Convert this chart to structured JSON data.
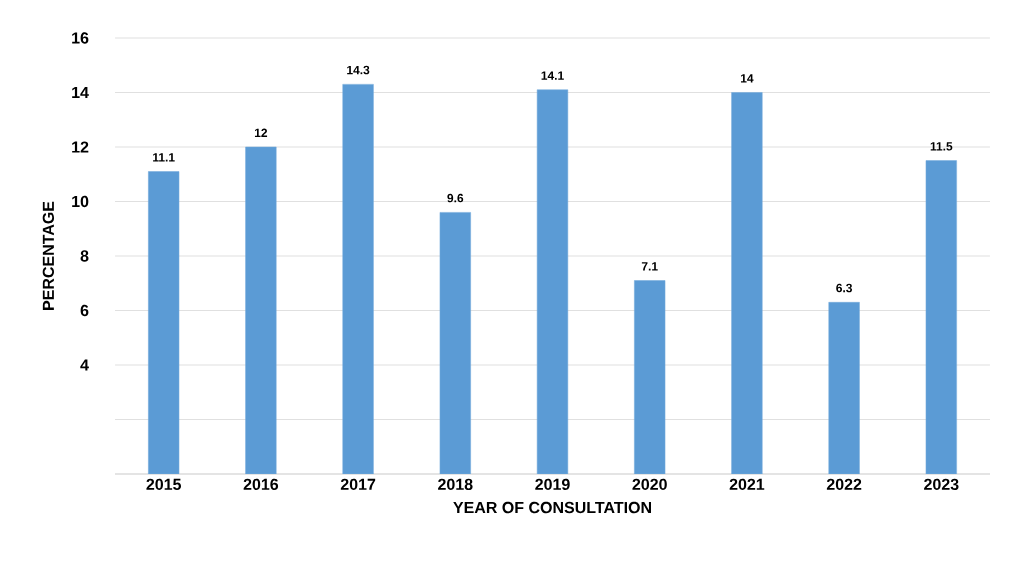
{
  "chart_data": {
    "type": "bar",
    "xlabel": "YEAR OF CONSULTATION",
    "ylabel": "PERCENTAGE",
    "categories": [
      "2015",
      "2016",
      "2017",
      "2018",
      "2019",
      "2020",
      "2021",
      "2022",
      "2023"
    ],
    "values": [
      11.1,
      12,
      14.3,
      9.6,
      14.1,
      7.1,
      14,
      6.3,
      11.5
    ],
    "color": "#5b9bd5",
    "ylim": [
      0,
      16
    ],
    "yticks": [
      {
        "value": 0,
        "label": null
      },
      {
        "value": 2,
        "label": null
      },
      4,
      6,
      8,
      10,
      12,
      14,
      16
    ],
    "grid": "y",
    "data_labels": true
  }
}
